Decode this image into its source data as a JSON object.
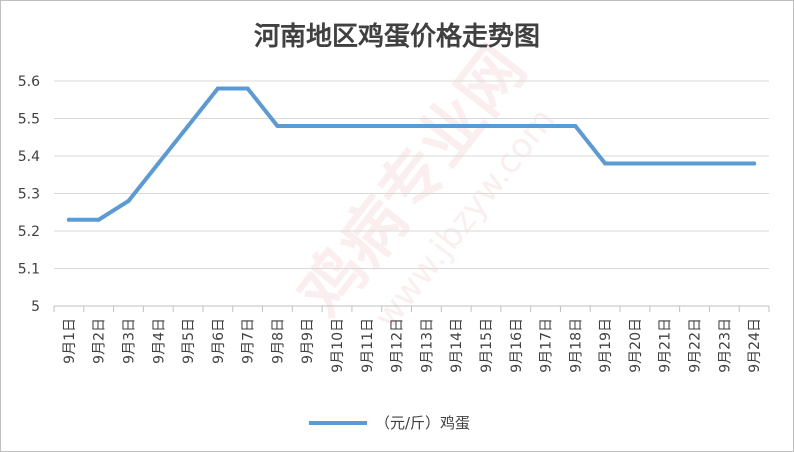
{
  "watermark": {
    "brand_text": "鸡病专业网",
    "url_text": "www.jbzyw.com"
  },
  "chart_data": {
    "type": "line",
    "title": "河南地区鸡蛋价格走势图",
    "xlabel": "",
    "ylabel": "",
    "categories": [
      "9月1日",
      "9月2日",
      "9月3日",
      "9月4日",
      "9月5日",
      "9月6日",
      "9月7日",
      "9月8日",
      "9月9日",
      "9月10日",
      "9月11日",
      "9月12日",
      "9月13日",
      "9月14日",
      "9月15日",
      "9月16日",
      "9月17日",
      "9月18日",
      "9月19日",
      "9月20日",
      "9月21日",
      "9月22日",
      "9月23日",
      "9月24日"
    ],
    "series": [
      {
        "name": "（元/斤）鸡蛋",
        "color": "#5b9bd5",
        "values": [
          5.23,
          5.23,
          5.28,
          5.38,
          5.48,
          5.58,
          5.58,
          5.48,
          5.48,
          5.48,
          5.48,
          5.48,
          5.48,
          5.48,
          5.48,
          5.48,
          5.48,
          5.48,
          5.38,
          5.38,
          5.38,
          5.38,
          5.38,
          5.38
        ]
      }
    ],
    "ylim": [
      5,
      5.6
    ],
    "yticks": [
      "5",
      "5.1",
      "5.2",
      "5.3",
      "5.4",
      "5.5",
      "5.6"
    ],
    "grid": true,
    "legend_position": "bottom"
  }
}
